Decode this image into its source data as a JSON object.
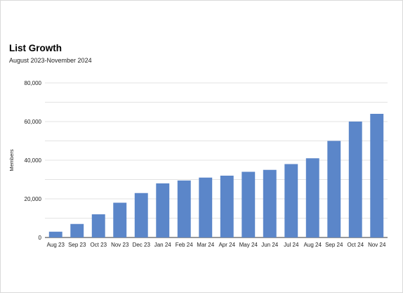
{
  "chart_data": {
    "type": "bar",
    "title": "List Growth",
    "subtitle": "August 2023-November 2024",
    "xlabel": "",
    "ylabel": "Members",
    "categories": [
      "Aug 23",
      "Sep 23",
      "Oct 23",
      "Nov 23",
      "Dec 23",
      "Jan 24",
      "Feb 24",
      "Mar 24",
      "Apr 24",
      "May 24",
      "Jun 24",
      "Jul 24",
      "Aug 24",
      "Sep 24",
      "Oct 24",
      "Nov 24"
    ],
    "values": [
      3000,
      7000,
      12000,
      18000,
      23000,
      28000,
      29500,
      31000,
      32000,
      34000,
      35000,
      38000,
      41000,
      50000,
      60000,
      64000
    ],
    "ylim": [
      0,
      80000
    ],
    "yticks": [
      0,
      20000,
      40000,
      60000,
      80000
    ],
    "ytick_labels": [
      "0",
      "20,000",
      "40,000",
      "60,000",
      "80,000"
    ],
    "grid": true,
    "legend": "none",
    "bar_color": "#5b86c9",
    "gridline_color": "#e3e3e3"
  }
}
